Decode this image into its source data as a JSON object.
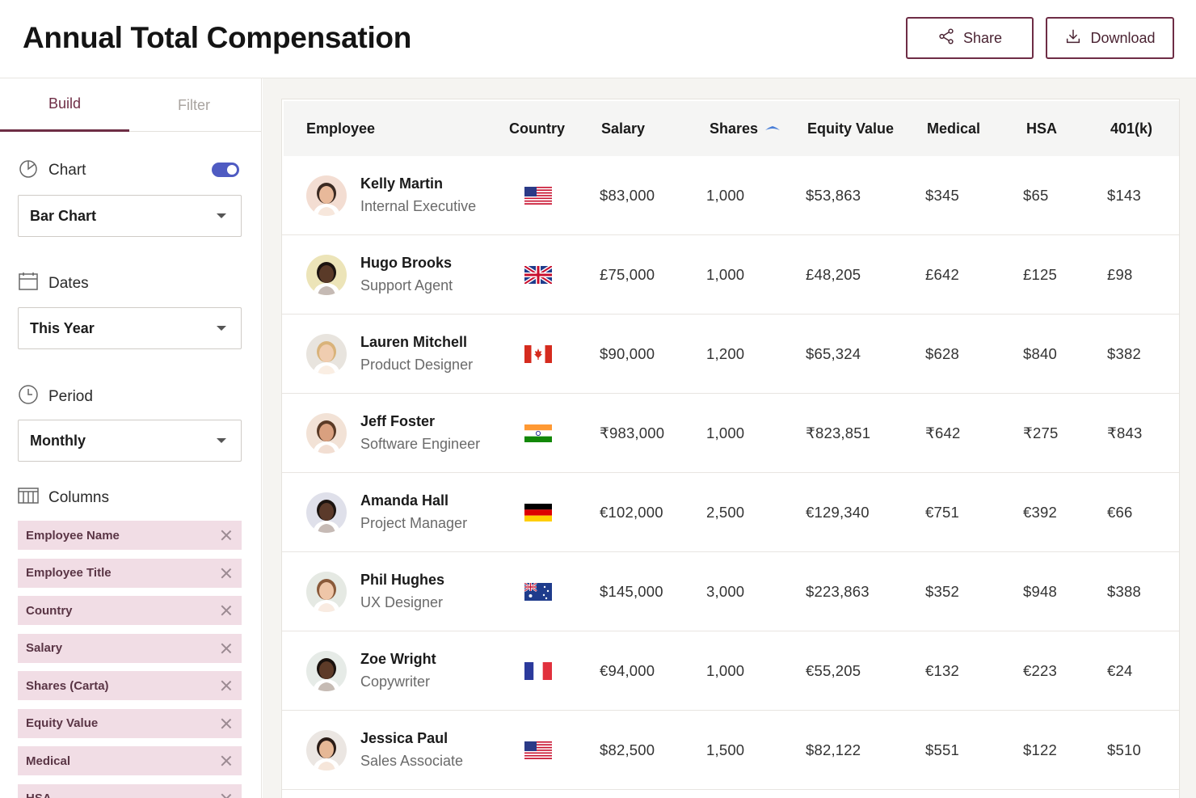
{
  "header": {
    "title": "Annual Total Compensation",
    "share_label": "Share",
    "download_label": "Download"
  },
  "sidebar": {
    "tabs": {
      "build": "Build",
      "filter": "Filter"
    },
    "chart": {
      "label": "Chart",
      "toggle_on": true,
      "select_value": "Bar Chart"
    },
    "dates": {
      "label": "Dates",
      "select_value": "This Year"
    },
    "period": {
      "label": "Period",
      "select_value": "Monthly"
    },
    "columns": {
      "label": "Columns",
      "chips": [
        "Employee Name",
        "Employee Title",
        "Country",
        "Salary",
        "Shares (Carta)",
        "Equity Value",
        "Medical",
        "HSA"
      ]
    }
  },
  "table": {
    "headers": {
      "employee": "Employee",
      "country": "Country",
      "salary": "Salary",
      "shares": "Shares",
      "equity": "Equity Value",
      "medical": "Medical",
      "hsa": "HSA",
      "k401": "401(k)"
    },
    "sorted_column": "shares",
    "rows": [
      {
        "name": "Kelly Martin",
        "title": "Internal Executive",
        "country": "us-flag",
        "salary": "$83,000",
        "shares": "1,000",
        "equity": "$53,863",
        "medical": "$345",
        "hsa": "$65",
        "k401": "$143"
      },
      {
        "name": "Hugo Brooks",
        "title": "Support Agent",
        "country": "uk-flag",
        "salary": "£75,000",
        "shares": "1,000",
        "equity": "£48,205",
        "medical": "£642",
        "hsa": "£125",
        "k401": "£98"
      },
      {
        "name": "Lauren Mitchell",
        "title": "Product Designer",
        "country": "canada-flag",
        "salary": "$90,000",
        "shares": "1,200",
        "equity": "$65,324",
        "medical": "$628",
        "hsa": "$840",
        "k401": "$382"
      },
      {
        "name": "Jeff Foster",
        "title": "Software Engineer",
        "country": "india-flag",
        "salary": "₹983,000",
        "shares": "1,000",
        "equity": "₹823,851",
        "medical": "₹642",
        "hsa": "₹275",
        "k401": "₹843"
      },
      {
        "name": "Amanda Hall",
        "title": "Project Manager",
        "country": "germany-flag",
        "salary": "€102,000",
        "shares": "2,500",
        "equity": "€129,340",
        "medical": "€751",
        "hsa": "€392",
        "k401": "€66"
      },
      {
        "name": "Phil Hughes",
        "title": "UX Designer",
        "country": "australia-flag",
        "salary": "$145,000",
        "shares": "3,000",
        "equity": "$223,863",
        "medical": "$352",
        "hsa": "$948",
        "k401": "$388"
      },
      {
        "name": "Zoe Wright",
        "title": "Copywriter",
        "country": "france-flag",
        "salary": "€94,000",
        "shares": "1,000",
        "equity": "€55,205",
        "medical": "€132",
        "hsa": "€223",
        "k401": "€24"
      },
      {
        "name": "Jessica Paul",
        "title": "Sales Associate",
        "country": "us-flag",
        "salary": "$82,500",
        "shares": "1,500",
        "equity": "$82,122",
        "medical": "$551",
        "hsa": "$122",
        "k401": "$510"
      }
    ]
  },
  "colors": {
    "accent": "#6e2d45",
    "chip_bg": "#f1dde5",
    "toggle": "#4f5bc2",
    "sort_icon": "#4a7fd8"
  }
}
